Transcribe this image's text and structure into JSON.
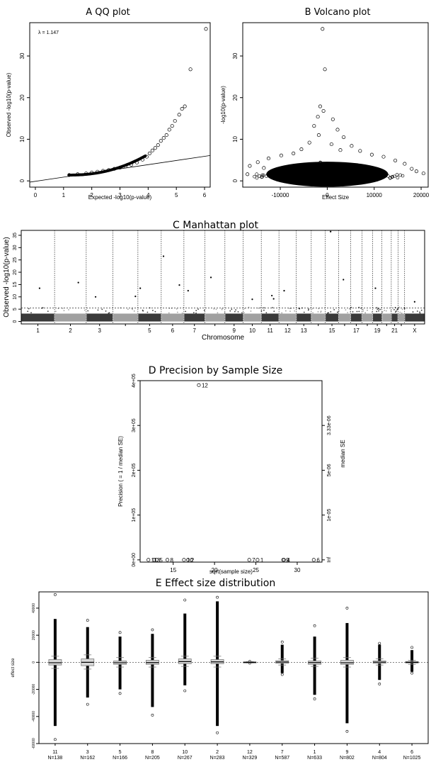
{
  "colors": {
    "dark": "#3a3a3a",
    "light": "#a0a0a0",
    "ink": "#000000",
    "box": "#7a7a7a"
  },
  "chart_data": [
    {
      "id": "qq",
      "type": "scatter",
      "title": "A QQ plot",
      "xlabel": "Expected -log10(p-value)",
      "ylabel": "Observed -log10(p-value)",
      "xlim": [
        -0.2,
        6.2
      ],
      "ylim": [
        -1.5,
        38
      ],
      "xticks": [
        "0",
        "1",
        "2",
        "3",
        "4",
        "5",
        "6"
      ],
      "yticks": [
        "0",
        "10",
        "20",
        "30"
      ],
      "annotation": "λ = 1.147",
      "points": [
        [
          1.2,
          1.4
        ],
        [
          1.5,
          1.6
        ],
        [
          1.8,
          1.8
        ],
        [
          2.0,
          2.0
        ],
        [
          2.2,
          2.2
        ],
        [
          2.4,
          2.4
        ],
        [
          2.6,
          2.6
        ],
        [
          2.8,
          2.9
        ],
        [
          3.0,
          3.2
        ],
        [
          3.2,
          3.5
        ],
        [
          3.4,
          3.9
        ],
        [
          3.6,
          4.4
        ],
        [
          3.8,
          5.1
        ],
        [
          3.95,
          5.8
        ],
        [
          4.05,
          6.6
        ],
        [
          4.15,
          7.3
        ],
        [
          4.25,
          7.9
        ],
        [
          4.35,
          8.6
        ],
        [
          4.45,
          9.6
        ],
        [
          4.55,
          10.3
        ],
        [
          4.65,
          11.0
        ],
        [
          4.75,
          12.3
        ],
        [
          4.85,
          13.2
        ],
        [
          4.95,
          14.4
        ],
        [
          5.1,
          15.9
        ],
        [
          5.2,
          17.3
        ],
        [
          5.3,
          17.9
        ],
        [
          5.5,
          26.8
        ],
        [
          6.05,
          36.5
        ]
      ],
      "line": [
        [
          -0.2,
          -0.3
        ],
        [
          6.2,
          6.1
        ]
      ]
    },
    {
      "id": "volcano",
      "type": "scatter",
      "title": "B Volcano plot",
      "xlabel": "Effect Size",
      "ylabel": "-log10(p-value)",
      "xlim": [
        -18000,
        21500
      ],
      "ylim": [
        -1.5,
        38
      ],
      "xticks": [
        "-10000",
        "0",
        "10000",
        "20000"
      ],
      "yticks": [
        "0",
        "10",
        "20",
        "30"
      ],
      "points": [
        [
          -1000,
          36.5
        ],
        [
          -500,
          26.8
        ],
        [
          -1500,
          17.9
        ],
        [
          -800,
          16.8
        ],
        [
          -2000,
          15.4
        ],
        [
          1200,
          14.8
        ],
        [
          -2800,
          13.2
        ],
        [
          2200,
          12.3
        ],
        [
          -1800,
          11.0
        ],
        [
          3500,
          10.5
        ],
        [
          -3800,
          9.2
        ],
        [
          900,
          8.8
        ],
        [
          5200,
          8.4
        ],
        [
          -5500,
          7.6
        ],
        [
          2800,
          7.4
        ],
        [
          7000,
          7.2
        ],
        [
          -7200,
          6.6
        ],
        [
          9500,
          6.3
        ],
        [
          -9800,
          6.1
        ],
        [
          12000,
          5.8
        ],
        [
          -12500,
          5.4
        ],
        [
          14500,
          4.9
        ],
        [
          -14800,
          4.5
        ],
        [
          16500,
          4.1
        ],
        [
          -16500,
          3.6
        ],
        [
          19000,
          2.3
        ],
        [
          20500,
          1.8
        ],
        [
          -17000,
          1.6
        ],
        [
          18000,
          2.9
        ],
        [
          -13500,
          3.1
        ]
      ]
    },
    {
      "id": "manhattan",
      "type": "scatter",
      "title": "C Manhattan plot",
      "xlabel": "Chromosome",
      "ylabel": "Observed -log10(p-value)",
      "ylim": [
        -1,
        37
      ],
      "yticks": [
        "0",
        "5",
        "10",
        "15",
        "20",
        "25",
        "30",
        "35"
      ],
      "chromosomes": [
        "1",
        "2",
        "3",
        "4",
        "5",
        "6",
        "7",
        "8",
        "9",
        "10",
        "11",
        "12",
        "13",
        "14",
        "15",
        "16",
        "17",
        "18",
        "19",
        "20",
        "21",
        "22",
        "X"
      ],
      "xtick_labels": [
        "1",
        "2",
        "3",
        "",
        "5",
        "6",
        "7",
        "",
        "9",
        "10",
        "11",
        "12",
        "13",
        "",
        "15",
        "",
        "17",
        "",
        "19",
        "",
        "21",
        "",
        "X"
      ],
      "widths": [
        10,
        9.5,
        8,
        7.5,
        7,
        6.8,
        6.3,
        6,
        5.5,
        5.4,
        5.3,
        5.2,
        4.5,
        4.2,
        4,
        3.6,
        3.4,
        3.2,
        2.8,
        2.8,
        2.0,
        2.0,
        6.0
      ],
      "significance_line": 5.5,
      "peaks": [
        {
          "chr": "1",
          "pos": 0.55,
          "y": 13.5
        },
        {
          "chr": "2",
          "pos": 0.75,
          "y": 15.8
        },
        {
          "chr": "3",
          "pos": 0.35,
          "y": 10.0
        },
        {
          "chr": "4",
          "pos": 0.9,
          "y": 10.2
        },
        {
          "chr": "5",
          "pos": 0.1,
          "y": 13.5
        },
        {
          "chr": "6",
          "pos": 0.1,
          "y": 26.5
        },
        {
          "chr": "6",
          "pos": 0.8,
          "y": 14.8
        },
        {
          "chr": "7",
          "pos": 0.2,
          "y": 12.5
        },
        {
          "chr": "8",
          "pos": 0.3,
          "y": 17.9
        },
        {
          "chr": "10",
          "pos": 0.5,
          "y": 9.0
        },
        {
          "chr": "11",
          "pos": 0.6,
          "y": 10.5
        },
        {
          "chr": "11",
          "pos": 0.7,
          "y": 9.2
        },
        {
          "chr": "12",
          "pos": 0.3,
          "y": 12.5
        },
        {
          "chr": "15",
          "pos": 0.4,
          "y": 36.5
        },
        {
          "chr": "16",
          "pos": 0.4,
          "y": 17.0
        },
        {
          "chr": "19",
          "pos": 0.3,
          "y": 13.5
        },
        {
          "chr": "X",
          "pos": 0.5,
          "y": 8.0
        }
      ]
    },
    {
      "id": "precision",
      "type": "scatter",
      "title": "D Precision by Sample Size",
      "xlabel": "sqrt(sample size)",
      "ylabel": "Precision ( = 1 / median SE)",
      "ylabel_right": "median SE",
      "xlim": [
        11.0,
        33.0
      ],
      "ylim": [
        -5000,
        400000
      ],
      "xticks": [
        "15",
        "20",
        "25",
        "30"
      ],
      "yticks": [
        "0e+00",
        "1e+05",
        "2e+05",
        "3e+05",
        "4e+05"
      ],
      "yticks_right": [
        "Inf",
        "1e-05",
        "5e-06",
        "3.33e-06"
      ],
      "points": [
        {
          "x": 12.0,
          "y": 0,
          "label": "11"
        },
        {
          "x": 12.7,
          "y": 0,
          "label": "3"
        },
        {
          "x": 13.0,
          "y": 0,
          "label": "5"
        },
        {
          "x": 14.3,
          "y": 0,
          "label": "8"
        },
        {
          "x": 16.3,
          "y": 0,
          "label": "10"
        },
        {
          "x": 16.8,
          "y": 0,
          "label": "2"
        },
        {
          "x": 18.1,
          "y": 390000,
          "label": "12"
        },
        {
          "x": 24.2,
          "y": 0,
          "label": "7"
        },
        {
          "x": 25.2,
          "y": 0,
          "label": "1"
        },
        {
          "x": 28.3,
          "y": 0,
          "label": "9"
        },
        {
          "x": 28.4,
          "y": 0,
          "label": "4"
        },
        {
          "x": 32.0,
          "y": 0,
          "label": "6"
        }
      ]
    },
    {
      "id": "effect",
      "type": "box",
      "title": "E Effect size distribution",
      "xlabel": "",
      "ylabel": "effect size",
      "ylim": [
        -60000,
        52000
      ],
      "yticks": [
        "-60000",
        "-40000",
        "-20000",
        "0",
        "20000",
        "40000"
      ],
      "groups": [
        {
          "label": "11",
          "n": "N=138",
          "min": -57000,
          "max": 50000,
          "q1": -2000,
          "q3": 2000,
          "med": -300,
          "wlo": -4500,
          "whi": 4500,
          "dense": [
            -47000,
            32000
          ]
        },
        {
          "label": "3",
          "n": "N=162",
          "min": -31000,
          "max": 31000,
          "q1": -2500,
          "q3": 2500,
          "med": 0,
          "wlo": -5000,
          "whi": 5500,
          "dense": [
            -26000,
            26000
          ]
        },
        {
          "label": "5",
          "n": "N=166",
          "min": -23000,
          "max": 22000,
          "q1": -1500,
          "q3": 1000,
          "med": -300,
          "wlo": -3500,
          "whi": 3500,
          "dense": [
            -20000,
            19000
          ]
        },
        {
          "label": "8",
          "n": "N=205",
          "min": -39000,
          "max": 24000,
          "q1": -1500,
          "q3": 1500,
          "med": -200,
          "wlo": -3500,
          "whi": 3500,
          "dense": [
            -33000,
            21000
          ]
        },
        {
          "label": "10",
          "n": "N=267",
          "min": -21000,
          "max": 46000,
          "q1": -1000,
          "q3": 2500,
          "med": 500,
          "wlo": -3000,
          "whi": 4500,
          "dense": [
            -17000,
            36000
          ]
        },
        {
          "label": "2",
          "n": "N=283",
          "min": -52000,
          "max": 48000,
          "q1": -1000,
          "q3": 2000,
          "med": 300,
          "wlo": -3500,
          "whi": 4500,
          "dense": [
            -47000,
            45000
          ]
        },
        {
          "label": "12",
          "n": "N=329",
          "min": -600,
          "max": 600,
          "q1": -300,
          "q3": 300,
          "med": 0,
          "wlo": -500,
          "whi": 500,
          "dense": [
            -300,
            300
          ]
        },
        {
          "label": "7",
          "n": "N=587",
          "min": -9000,
          "max": 15000,
          "q1": -700,
          "q3": 1200,
          "med": 200,
          "wlo": -2000,
          "whi": 2500,
          "dense": [
            -8000,
            13000
          ]
        },
        {
          "label": "1",
          "n": "N=633",
          "min": -27000,
          "max": 27000,
          "q1": -1500,
          "q3": 1000,
          "med": -200,
          "wlo": -3000,
          "whi": 3000,
          "dense": [
            -24000,
            19000
          ]
        },
        {
          "label": "9",
          "n": "N=802",
          "min": -51000,
          "max": 40000,
          "q1": -1500,
          "q3": 1500,
          "med": -300,
          "wlo": -3500,
          "whi": 3500,
          "dense": [
            -45000,
            29000
          ]
        },
        {
          "label": "4",
          "n": "N=804",
          "min": -16000,
          "max": 14000,
          "q1": -700,
          "q3": 1000,
          "med": 100,
          "wlo": -2000,
          "whi": 2500,
          "dense": [
            -13000,
            13000
          ]
        },
        {
          "label": "6",
          "n": "N=1025",
          "min": -8000,
          "max": 11000,
          "q1": -500,
          "q3": 600,
          "med": 0,
          "wlo": -1500,
          "whi": 1500,
          "dense": [
            -7000,
            9000
          ]
        }
      ]
    }
  ]
}
